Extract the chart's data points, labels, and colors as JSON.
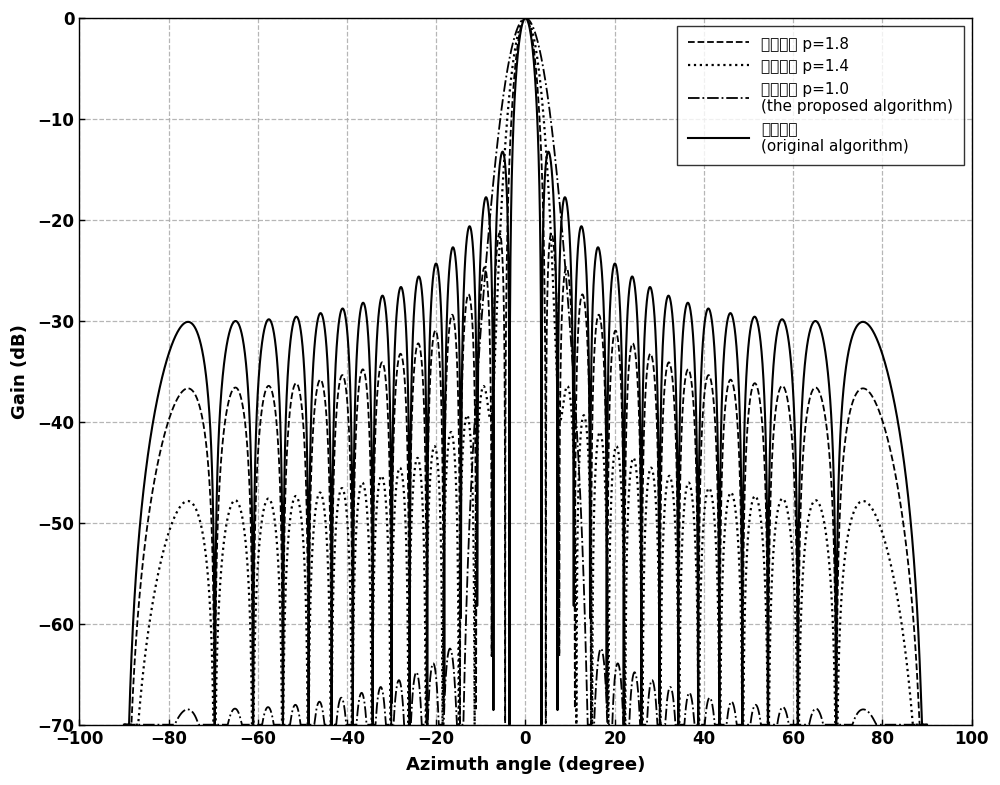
{
  "xlabel": "Azimuth angle (degree)",
  "ylabel": "Gain (dB)",
  "xlim": [
    -100,
    100
  ],
  "ylim": [
    -70,
    0
  ],
  "xticks": [
    -100,
    -80,
    -60,
    -40,
    -20,
    0,
    20,
    40,
    60,
    80,
    100
  ],
  "yticks": [
    0,
    -10,
    -20,
    -30,
    -40,
    -50,
    -60,
    -70
  ],
  "N": 32,
  "d_over_lambda": 0.5,
  "num_points": 5000,
  "alpha_orig": 0.0,
  "alpha_p18": 1.0,
  "alpha_p14": 2.5,
  "alpha_p10": 5.0,
  "background_color": "#ffffff",
  "grid_color": "#aaaaaa",
  "grid_linestyle": "--",
  "lw_dashed": 1.3,
  "lw_dotted": 1.6,
  "lw_dashdot": 1.3,
  "lw_solid": 1.5
}
